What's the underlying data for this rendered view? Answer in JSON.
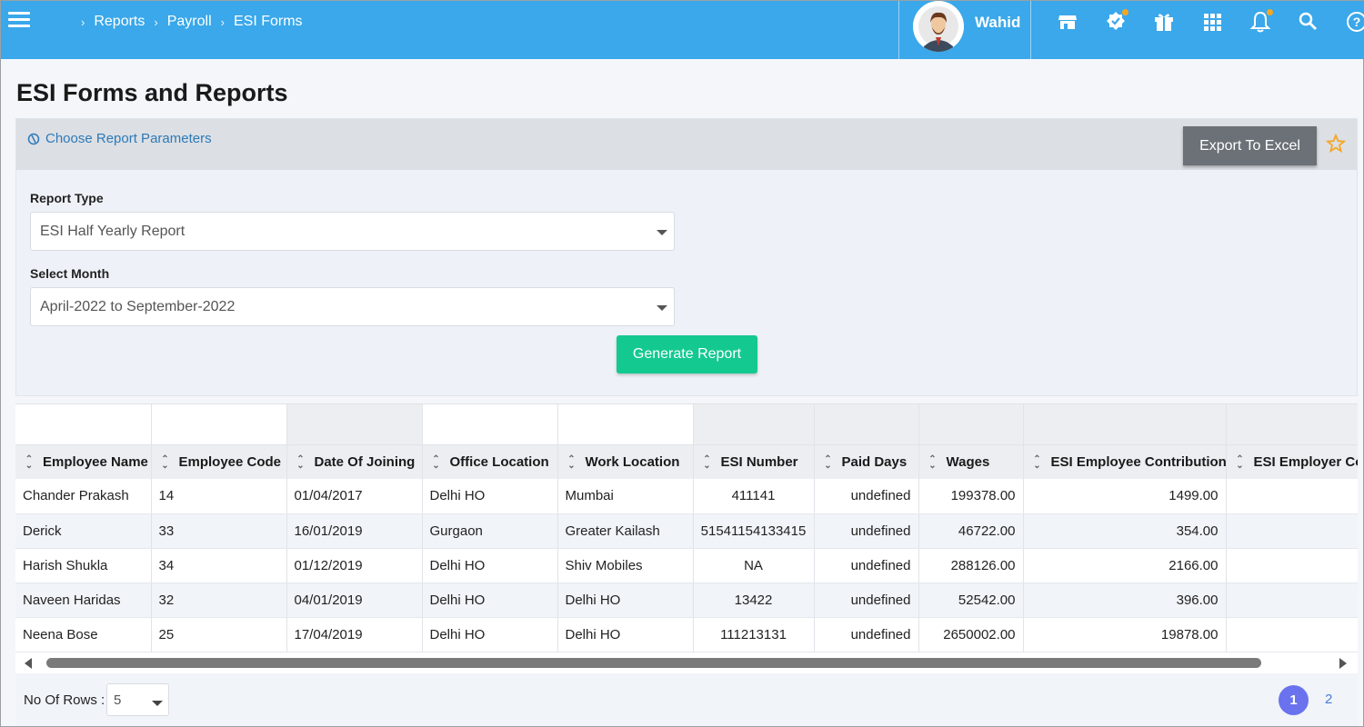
{
  "breadcrumb": [
    "Reports",
    "Payroll",
    "ESI Forms"
  ],
  "user": {
    "name": "Wahid"
  },
  "page_title": "ESI Forms and Reports",
  "params": {
    "choose_label": "Choose Report Parameters",
    "export_label": "Export To Excel",
    "report_type_label": "Report Type",
    "report_type_value": "ESI Half Yearly Report",
    "month_label": "Select Month",
    "month_value": "April-2022 to September-2022",
    "generate_label": "Generate Report"
  },
  "colors": {
    "topbar": "#3aa8ea",
    "generate": "#14c98f",
    "export": "#6b7177",
    "star": "#f5a623",
    "active_page": "#6a72ee"
  },
  "table": {
    "columns": [
      "Employee Name",
      "Employee Code",
      "Date Of Joining",
      "Office Location",
      "Work Location",
      "ESI Number",
      "Paid Days",
      "Wages",
      "ESI Employee Contribution",
      "ESI Employer Cor"
    ],
    "rows": [
      [
        "Chander Prakash",
        "14",
        "01/04/2017",
        "Delhi HO",
        "Mumbai",
        "411141",
        "undefined",
        "199378.00",
        "1499.00",
        ""
      ],
      [
        "Derick",
        "33",
        "16/01/2019",
        "Gurgaon",
        "Greater Kailash",
        "51541154133415",
        "undefined",
        "46722.00",
        "354.00",
        ""
      ],
      [
        "Harish Shukla",
        "34",
        "01/12/2019",
        "Delhi HO",
        "Shiv Mobiles",
        "NA",
        "undefined",
        "288126.00",
        "2166.00",
        ""
      ],
      [
        "Naveen Haridas",
        "32",
        "04/01/2019",
        "Delhi HO",
        "Delhi HO",
        "13422",
        "undefined",
        "52542.00",
        "396.00",
        ""
      ],
      [
        "Neena Bose",
        "25",
        "17/04/2019",
        "Delhi HO",
        "Delhi HO",
        "111213131",
        "undefined",
        "2650002.00",
        "19878.00",
        ""
      ]
    ]
  },
  "footer": {
    "rows_label": "No Of Rows :",
    "rows_value": "5",
    "pages": [
      "1",
      "2"
    ]
  },
  "icons": [
    "menu-icon",
    "store-icon",
    "verified-badge-icon",
    "gift-icon",
    "apps-grid-icon",
    "bell-icon",
    "search-icon",
    "help-icon"
  ]
}
